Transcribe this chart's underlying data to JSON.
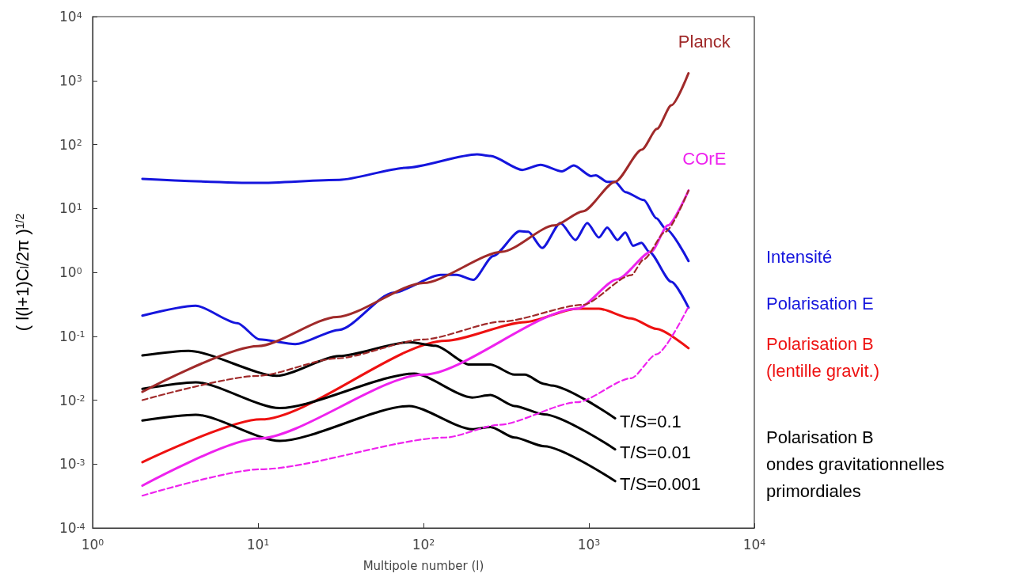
{
  "chart_data": {
    "type": "line",
    "xlabel": "Multipole number (l)",
    "ylabel": "( l(l+1)C$_{l}$/2π )$^{1/2}$",
    "log": "xy",
    "grid": false,
    "legend": false,
    "marker": "none",
    "xlim": [
      1,
      10000
    ],
    "xticks": [
      {
        "value": 1,
        "label": "10$^{0}$"
      },
      {
        "value": 10,
        "label": "10$^{1}$"
      },
      {
        "value": 100,
        "label": "10$^{2}$"
      },
      {
        "value": 1000,
        "label": "10$^{3}$"
      },
      {
        "value": 10000,
        "label": "10$^{4}$"
      }
    ],
    "ylim": [
      0.0001,
      10000
    ],
    "yticks": [
      {
        "value": 0.0001,
        "label": "10$^{-4}$"
      },
      {
        "value": 0.001,
        "label": "10$^{-3}$"
      },
      {
        "value": 0.01,
        "label": "10$^{-2}$"
      },
      {
        "value": 0.1,
        "label": "10$^{-1}$"
      },
      {
        "value": 1,
        "label": "10$^{0}$"
      },
      {
        "value": 10,
        "label": "10$^{1}$"
      },
      {
        "value": 100,
        "label": "10$^{2}$"
      },
      {
        "value": 1000,
        "label": "10$^{3}$"
      },
      {
        "value": 10000,
        "label": "10$^{4}$"
      }
    ],
    "series": [
      {
        "name": "Intensité",
        "color": "#1515dd",
        "line_style": "solid",
        "x": [
          2,
          10,
          31,
          78,
          211,
          254,
          396,
          510,
          687,
          811,
          1033,
          1100,
          1290,
          1440,
          1660,
          2150,
          2560,
          2910,
          4000
        ],
        "values": [
          29,
          25,
          28,
          43,
          70,
          66,
          40,
          48,
          38,
          47,
          32,
          33,
          26,
          26,
          18,
          13.5,
          7,
          4.8,
          1.5
        ]
      },
      {
        "name": "Polarisation E",
        "color": "#1515dd",
        "line_style": "solid",
        "x": [
          2,
          4.2,
          7.5,
          10.2,
          16.8,
          31,
          66,
          127,
          159,
          200,
          264,
          382,
          430,
          522,
          673,
          830,
          977,
          1150,
          1290,
          1490,
          1660,
          1850,
          2080,
          2310,
          3150,
          4000
        ],
        "values": [
          0.21,
          0.3,
          0.16,
          0.089,
          0.075,
          0.126,
          0.48,
          0.91,
          0.91,
          0.76,
          1.8,
          4.4,
          4.3,
          2.4,
          5.9,
          3.2,
          5.9,
          3.5,
          5.0,
          3.2,
          4.2,
          2.6,
          2.9,
          2.1,
          0.71,
          0.28
        ]
      },
      {
        "name": "Polarisation B\n(lentille gravit.)",
        "color": "#ee1111",
        "line_style": "solid",
        "x": [
          2,
          10.4,
          136,
          410,
          850,
          1150,
          1800,
          2560,
          4000
        ],
        "values": [
          0.00107,
          0.005,
          0.085,
          0.166,
          0.27,
          0.27,
          0.19,
          0.13,
          0.065
        ]
      },
      {
        "name": "T/S=0.1",
        "color": "#000000",
        "line_style": "solid",
        "x": [
          2,
          3.8,
          13,
          31,
          82,
          118,
          190,
          254,
          355,
          410,
          535,
          590,
          1440
        ],
        "values": [
          0.05,
          0.059,
          0.024,
          0.049,
          0.081,
          0.071,
          0.036,
          0.036,
          0.025,
          0.025,
          0.018,
          0.017,
          0.0052
        ]
      },
      {
        "name": "T/S=0.01",
        "color": "#000000",
        "line_style": "solid",
        "x": [
          2,
          4.2,
          13.5,
          88,
          197,
          254,
          355,
          535,
          1440
        ],
        "values": [
          0.015,
          0.019,
          0.0075,
          0.026,
          0.011,
          0.012,
          0.0081,
          0.006,
          0.0017
        ]
      },
      {
        "name": "T/S=0.001",
        "color": "#000000",
        "line_style": "solid",
        "x": [
          2,
          4.2,
          13.5,
          82,
          197,
          254,
          355,
          535,
          1440
        ],
        "values": [
          0.0048,
          0.0059,
          0.0023,
          0.0081,
          0.0035,
          0.0038,
          0.0026,
          0.0019,
          0.00054
        ]
      },
      {
        "name": "Planck",
        "color": "#a02a2a",
        "line_style": "solid",
        "x": [
          2,
          10,
          30,
          100,
          300,
          617,
          920,
          1440,
          2090,
          2580,
          3150,
          4000
        ],
        "values": [
          0.0135,
          0.07,
          0.2,
          0.68,
          2.1,
          5.4,
          9,
          26,
          83,
          175,
          410,
          1300
        ]
      },
      {
        "color": "#a02a2a",
        "line_style": "dashed",
        "x": [
          2,
          10,
          30,
          100,
          300,
          920,
          1800,
          2150,
          2900,
          4000
        ],
        "values": [
          0.01,
          0.024,
          0.045,
          0.089,
          0.17,
          0.31,
          0.9,
          1.6,
          4.3,
          19
        ]
      },
      {
        "name": "COrE",
        "color": "#ee22ee",
        "line_style": "solid",
        "x": [
          2,
          10,
          100,
          850,
          1490,
          2380,
          3000,
          4000
        ],
        "values": [
          0.00046,
          0.0025,
          0.025,
          0.27,
          0.78,
          2.1,
          5.4,
          19
        ]
      },
      {
        "color": "#ee22ee",
        "line_style": "dashed",
        "x": [
          2,
          10.4,
          136,
          285,
          850,
          1800,
          2560,
          4000
        ],
        "values": [
          0.00032,
          0.00083,
          0.0026,
          0.0041,
          0.0093,
          0.022,
          0.052,
          0.29
        ]
      }
    ],
    "annotations": [
      "Polarisation B\nondes gravitationnelles\nprimordiales"
    ]
  }
}
